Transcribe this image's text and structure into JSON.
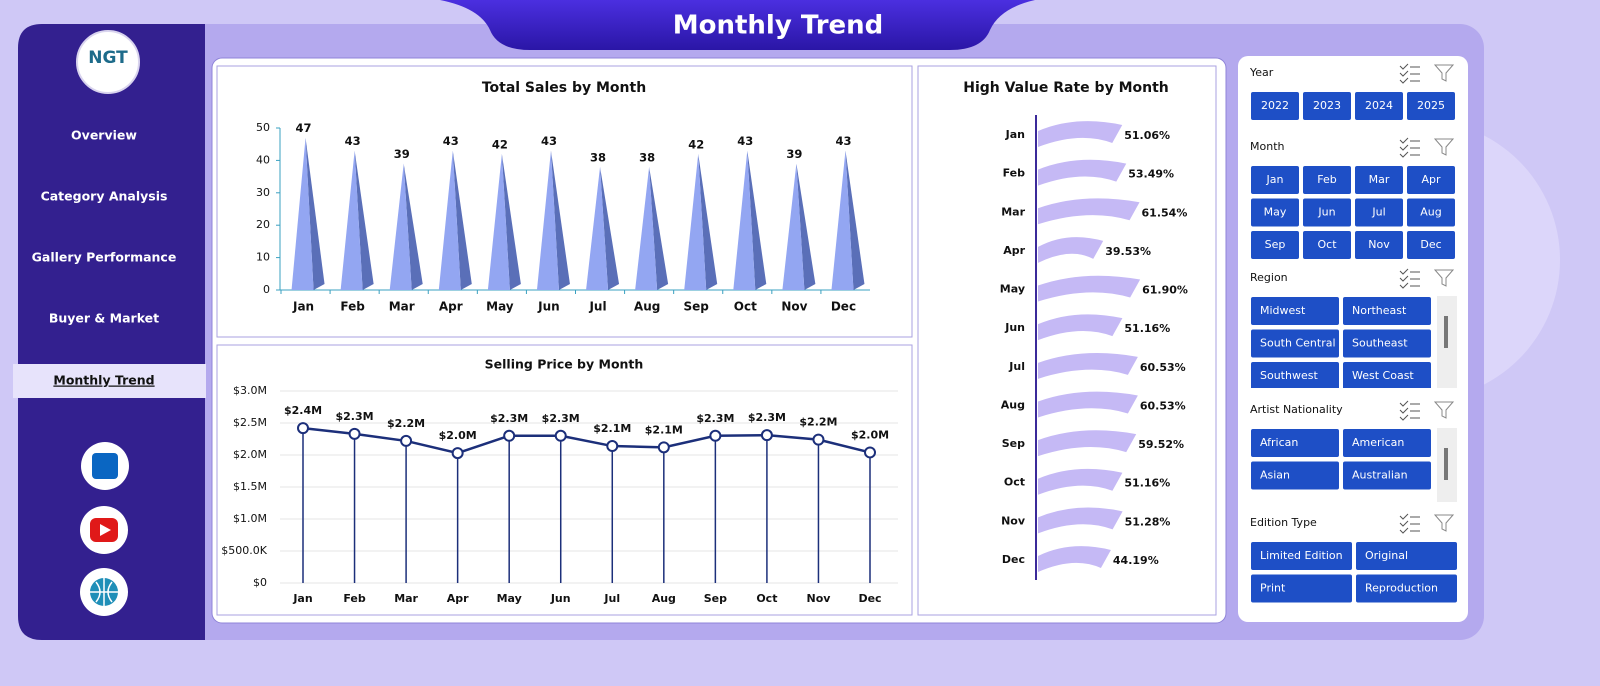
{
  "header": {
    "title": "Monthly Trend"
  },
  "sidebar": {
    "logo": "NGT",
    "nav": [
      "Overview",
      "Category Analysis",
      "Gallery Performance",
      "Buyer & Market",
      "Monthly Trend"
    ]
  },
  "chart_data": [
    {
      "type": "bar",
      "title": "Total Sales by Month",
      "color": "#93a6f2",
      "categories": [
        "Jan",
        "Feb",
        "Mar",
        "Apr",
        "May",
        "Jun",
        "Jul",
        "Aug",
        "Sep",
        "Oct",
        "Nov",
        "Dec"
      ],
      "values": [
        47,
        43,
        39,
        43,
        42,
        43,
        38,
        38,
        42,
        43,
        39,
        43
      ],
      "ylim": [
        0,
        50
      ],
      "yticks": [
        0,
        10,
        20,
        30,
        40,
        50
      ]
    },
    {
      "type": "line",
      "title": "Selling Price by Month",
      "color": "#1c2f7a",
      "categories": [
        "Jan",
        "Feb",
        "Mar",
        "Apr",
        "May",
        "Jun",
        "Jul",
        "Aug",
        "Sep",
        "Oct",
        "Nov",
        "Dec"
      ],
      "values": [
        2420000,
        2330000,
        2220000,
        2030000,
        2300000,
        2300000,
        2140000,
        2120000,
        2300000,
        2310000,
        2240000,
        2040000
      ],
      "value_labels": [
        "$2.4M",
        "$2.3M",
        "$2.2M",
        "$2.0M",
        "$2.3M",
        "$2.3M",
        "$2.1M",
        "$2.1M",
        "$2.3M",
        "$2.3M",
        "$2.2M",
        "$2.0M"
      ],
      "ylim": [
        0,
        3000000
      ],
      "yticks": [
        {
          "value": 0,
          "label": "$0"
        },
        {
          "value": 500000,
          "label": "$500.0K"
        },
        {
          "value": 1000000,
          "label": "$1.0M"
        },
        {
          "value": 1500000,
          "label": "$1.5M"
        },
        {
          "value": 2000000,
          "label": "$2.0M"
        },
        {
          "value": 2500000,
          "label": "$2.5M"
        },
        {
          "value": 3000000,
          "label": "$3.0M"
        }
      ],
      "grid": true
    },
    {
      "type": "barh",
      "title": "High Value Rate by Month",
      "color": "#c5b9f5",
      "categories": [
        "Jan",
        "Feb",
        "Mar",
        "Apr",
        "May",
        "Jun",
        "Jul",
        "Aug",
        "Sep",
        "Oct",
        "Nov",
        "Dec"
      ],
      "values": [
        51.06,
        53.49,
        61.54,
        39.53,
        61.9,
        51.16,
        60.53,
        60.53,
        59.52,
        51.16,
        51.28,
        44.19
      ],
      "value_labels": [
        "51.06%",
        "53.49%",
        "61.54%",
        "39.53%",
        "61.90%",
        "51.16%",
        "60.53%",
        "60.53%",
        "59.52%",
        "51.16%",
        "51.28%",
        "44.19%"
      ],
      "xlim": [
        0,
        100
      ]
    }
  ],
  "slicers": [
    {
      "title": "Year",
      "items": [
        "2022",
        "2023",
        "2024",
        "2025"
      ]
    },
    {
      "title": "Month",
      "items": [
        "Jan",
        "Feb",
        "Mar",
        "Apr",
        "May",
        "Jun",
        "Jul",
        "Aug",
        "Sep",
        "Oct",
        "Nov",
        "Dec"
      ]
    },
    {
      "title": "Region",
      "items": [
        "Midwest",
        "Northeast",
        "South Central",
        "Southeast",
        "Southwest",
        "West Coast"
      ]
    },
    {
      "title": "Artist Nationality",
      "items": [
        "African",
        "American",
        "Asian",
        "Australian"
      ]
    },
    {
      "title": "Edition Type",
      "items": [
        "Limited Edition",
        "Original",
        "Print",
        "Reproduction"
      ]
    }
  ]
}
